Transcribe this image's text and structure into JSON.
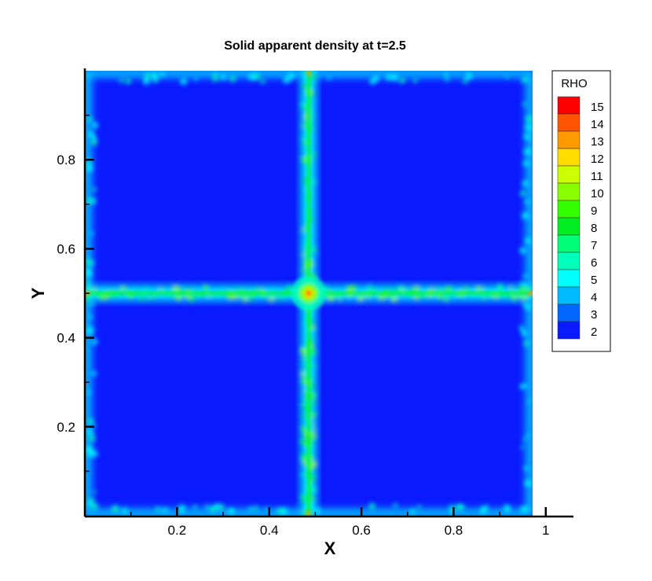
{
  "chart_data": {
    "type": "heatmap",
    "title": "Solid apparent density at t=2.5",
    "xlabel": "X",
    "ylabel": "Y",
    "xlim": [
      0,
      1.06
    ],
    "ylim": [
      0,
      1
    ],
    "x_ticks": [
      {
        "value": 0.2,
        "label": "0.2"
      },
      {
        "value": 0.4,
        "label": "0.4"
      },
      {
        "value": 0.6,
        "label": "0.6"
      },
      {
        "value": 0.8,
        "label": "0.8"
      },
      {
        "value": 1.0,
        "label": "1"
      }
    ],
    "y_ticks": [
      {
        "value": 0.2,
        "label": "0.2"
      },
      {
        "value": 0.4,
        "label": "0.4"
      },
      {
        "value": 0.6,
        "label": "0.6"
      },
      {
        "value": 0.8,
        "label": "0.8"
      }
    ],
    "field_extent": {
      "x": [
        0,
        1
      ],
      "y": [
        0,
        1
      ]
    },
    "background_value": 2,
    "features": [
      {
        "kind": "vertical-band",
        "x": 0.5,
        "peak": 8
      },
      {
        "kind": "horizontal-band",
        "y": 0.5,
        "peak": 8
      },
      {
        "kind": "hotspot",
        "x": 0.5,
        "y": 0.5,
        "peak": 15
      },
      {
        "kind": "boundary-frame",
        "peak": 5
      }
    ],
    "legend": {
      "title": "RHO",
      "placement": "right",
      "levels": [
        {
          "label": "15",
          "color": "#ff0000"
        },
        {
          "label": "14",
          "color": "#ff5500"
        },
        {
          "label": "13",
          "color": "#ff9900"
        },
        {
          "label": "12",
          "color": "#ffdd00"
        },
        {
          "label": "11",
          "color": "#ccff00"
        },
        {
          "label": "10",
          "color": "#88ff00"
        },
        {
          "label": "9",
          "color": "#33ff00"
        },
        {
          "label": "8",
          "color": "#00ee22"
        },
        {
          "label": "7",
          "color": "#00ff77"
        },
        {
          "label": "6",
          "color": "#00ffbb"
        },
        {
          "label": "5",
          "color": "#00ffff"
        },
        {
          "label": "4",
          "color": "#00bbff"
        },
        {
          "label": "3",
          "color": "#0066ff"
        },
        {
          "label": "2",
          "color": "#0a1aff"
        }
      ]
    }
  }
}
